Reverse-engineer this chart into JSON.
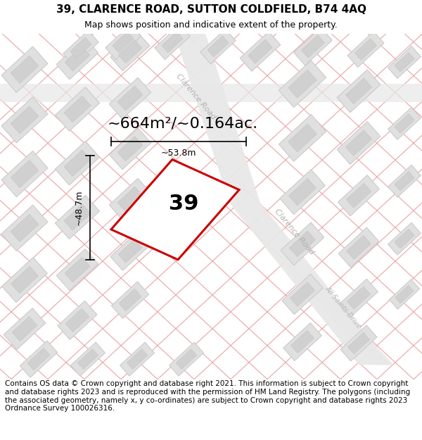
{
  "title": "39, CLARENCE ROAD, SUTTON COLDFIELD, B74 4AQ",
  "subtitle": "Map shows position and indicative extent of the property.",
  "footer": "Contains OS data © Crown copyright and database right 2021. This information is subject to Crown copyright and database rights 2023 and is reproduced with the permission of HM Land Registry. The polygons (including the associated geometry, namely x, y co-ordinates) are subject to Crown copyright and database rights 2023 Ordnance Survey 100026316.",
  "area_label": "~664m²/~0.164ac.",
  "width_label": "~53.8m",
  "height_label": "~48.7m",
  "property_number": "39",
  "map_bg": "#f8f5f2",
  "road_surface": "#e8e8e8",
  "building_face": "#e0e0e0",
  "building_edge": "#c8c8c8",
  "building_inner": "#d0d0d0",
  "property_line_color": "#e8a0a0",
  "property_fill": "#ffffff",
  "property_edge_color": "#cc0000",
  "title_fontsize": 11,
  "subtitle_fontsize": 9,
  "footer_fontsize": 7.5,
  "area_fontsize": 16,
  "number_fontsize": 22,
  "dim_fontsize": 9,
  "road_label_fontsize": 8
}
